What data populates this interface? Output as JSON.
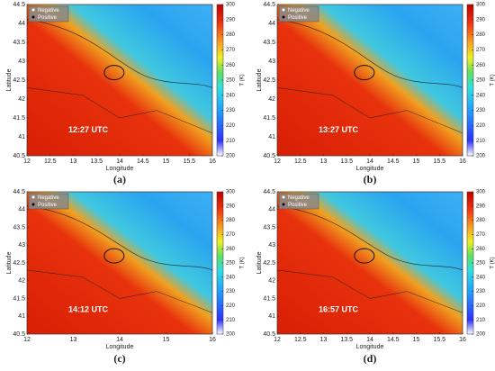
{
  "panels": [
    {
      "label": "(a)",
      "time": "12:27 UTC",
      "xlabel": "Longitude",
      "ylabel": "Latitude",
      "xlim": [
        12,
        16
      ],
      "ylim": [
        40.5,
        44.5
      ],
      "xticks": [
        12,
        12.5,
        13,
        13.5,
        14,
        14.5,
        15,
        15.5,
        16
      ],
      "yticks": [
        40.5,
        41,
        41.5,
        42,
        42.5,
        43,
        43.5,
        44,
        44.5
      ],
      "legend": [
        "Negative",
        "Positive"
      ],
      "colorbar": {
        "label": "T (K)",
        "lim": [
          200,
          300
        ],
        "ticks": [
          200,
          210,
          220,
          230,
          240,
          250,
          260,
          270,
          280,
          290,
          300
        ]
      }
    },
    {
      "label": "(b)",
      "time": "13:27 UTC",
      "xlabel": "Longitude",
      "ylabel": "Latitude",
      "xlim": [
        12,
        16
      ],
      "ylim": [
        40.5,
        44.5
      ],
      "xticks": [
        12,
        12.5,
        13,
        13.5,
        14,
        14.5,
        15,
        15.5,
        16
      ],
      "yticks": [
        40.5,
        41,
        41.5,
        42,
        42.5,
        43,
        43.5,
        44,
        44.5
      ],
      "legend": [
        "Negative",
        "Positive"
      ],
      "colorbar": {
        "label": "T (K)",
        "lim": [
          200,
          300
        ],
        "ticks": [
          200,
          210,
          220,
          230,
          240,
          250,
          260,
          270,
          280,
          290,
          300
        ]
      }
    },
    {
      "label": "(c)",
      "time": "14:12 UTC",
      "xlabel": "Longitude",
      "ylabel": "Latitude",
      "xlim": [
        12,
        16
      ],
      "ylim": [
        40.5,
        44.5
      ],
      "xticks": [
        12,
        13,
        14,
        15,
        16
      ],
      "yticks": [
        40.5,
        41,
        41.5,
        42,
        42.5,
        43,
        43.5,
        44,
        44.5
      ],
      "legend": [
        "Negative",
        "Positive"
      ],
      "colorbar": {
        "label": "T (K)",
        "lim": [
          200,
          300
        ],
        "ticks": [
          200,
          210,
          220,
          230,
          240,
          250,
          260,
          270,
          280,
          290,
          300
        ]
      }
    },
    {
      "label": "(d)",
      "time": "16:57 UTC",
      "xlabel": "Longitude",
      "ylabel": "Latitude",
      "xlim": [
        12,
        16
      ],
      "ylim": [
        40.5,
        44.5
      ],
      "xticks": [
        12,
        12.5,
        13,
        13.5,
        14,
        14.5,
        15,
        15.5,
        16
      ],
      "yticks": [
        40.5,
        41,
        41.5,
        42,
        42.5,
        43,
        43.5,
        44,
        44.5
      ],
      "legend": [
        "Negative",
        "Positive"
      ],
      "colorbar": {
        "label": "T (K)",
        "lim": [
          200,
          300
        ],
        "ticks": [
          200,
          210,
          220,
          230,
          240,
          250,
          260,
          270,
          280,
          290,
          300
        ]
      }
    }
  ]
}
